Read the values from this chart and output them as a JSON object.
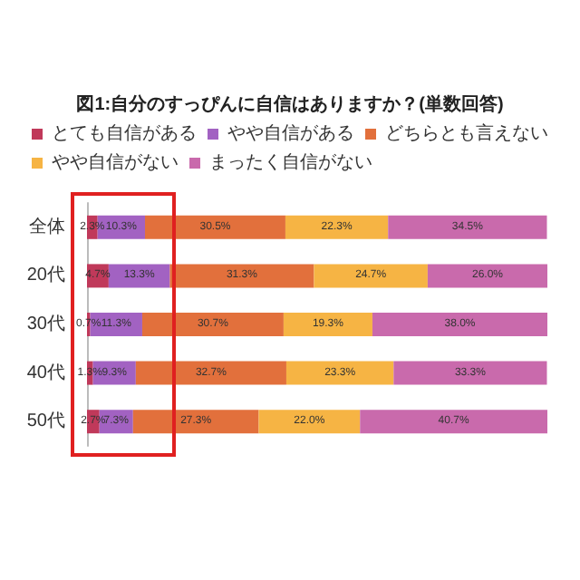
{
  "chart_data": {
    "type": "bar",
    "orientation": "horizontal",
    "stacked": true,
    "title": "図1:自分のすっぴんに自信はありますか？(単数回答)",
    "legend": "top",
    "categories": [
      "全体",
      "20代",
      "30代",
      "40代",
      "50代"
    ],
    "series": [
      {
        "name": "とても自信がある",
        "color": "#c0395a",
        "values": [
          2.3,
          4.7,
          0.7,
          1.3,
          2.7
        ],
        "value_labels": [
          "2.3%",
          "4.7%",
          "0.7%",
          "1.3%",
          "2.7%"
        ]
      },
      {
        "name": "やや自信がある",
        "color": "#a262c2",
        "values": [
          10.3,
          13.3,
          11.3,
          9.3,
          7.3
        ],
        "value_labels": [
          "10.3%",
          "13.3%",
          "11.3%",
          "9.3%",
          "7.3%"
        ]
      },
      {
        "name": "どちらとも言えない",
        "color": "#e2703c",
        "values": [
          30.5,
          31.3,
          30.7,
          32.7,
          27.3
        ],
        "value_labels": [
          "30.5%",
          "31.3%",
          "30.7%",
          "32.7%",
          "27.3%"
        ]
      },
      {
        "name": "やや自信がない",
        "color": "#f6b444",
        "values": [
          22.3,
          24.7,
          19.3,
          23.3,
          22.0
        ],
        "value_labels": [
          "22.3%",
          "24.7%",
          "19.3%",
          "23.3%",
          "22.0%"
        ]
      },
      {
        "name": "まったく自信がない",
        "color": "#c96aac",
        "values": [
          34.5,
          26.0,
          38.0,
          33.3,
          40.7
        ],
        "value_labels": [
          "34.5%",
          "26.0%",
          "38.0%",
          "33.3%",
          "40.7%"
        ]
      }
    ]
  }
}
